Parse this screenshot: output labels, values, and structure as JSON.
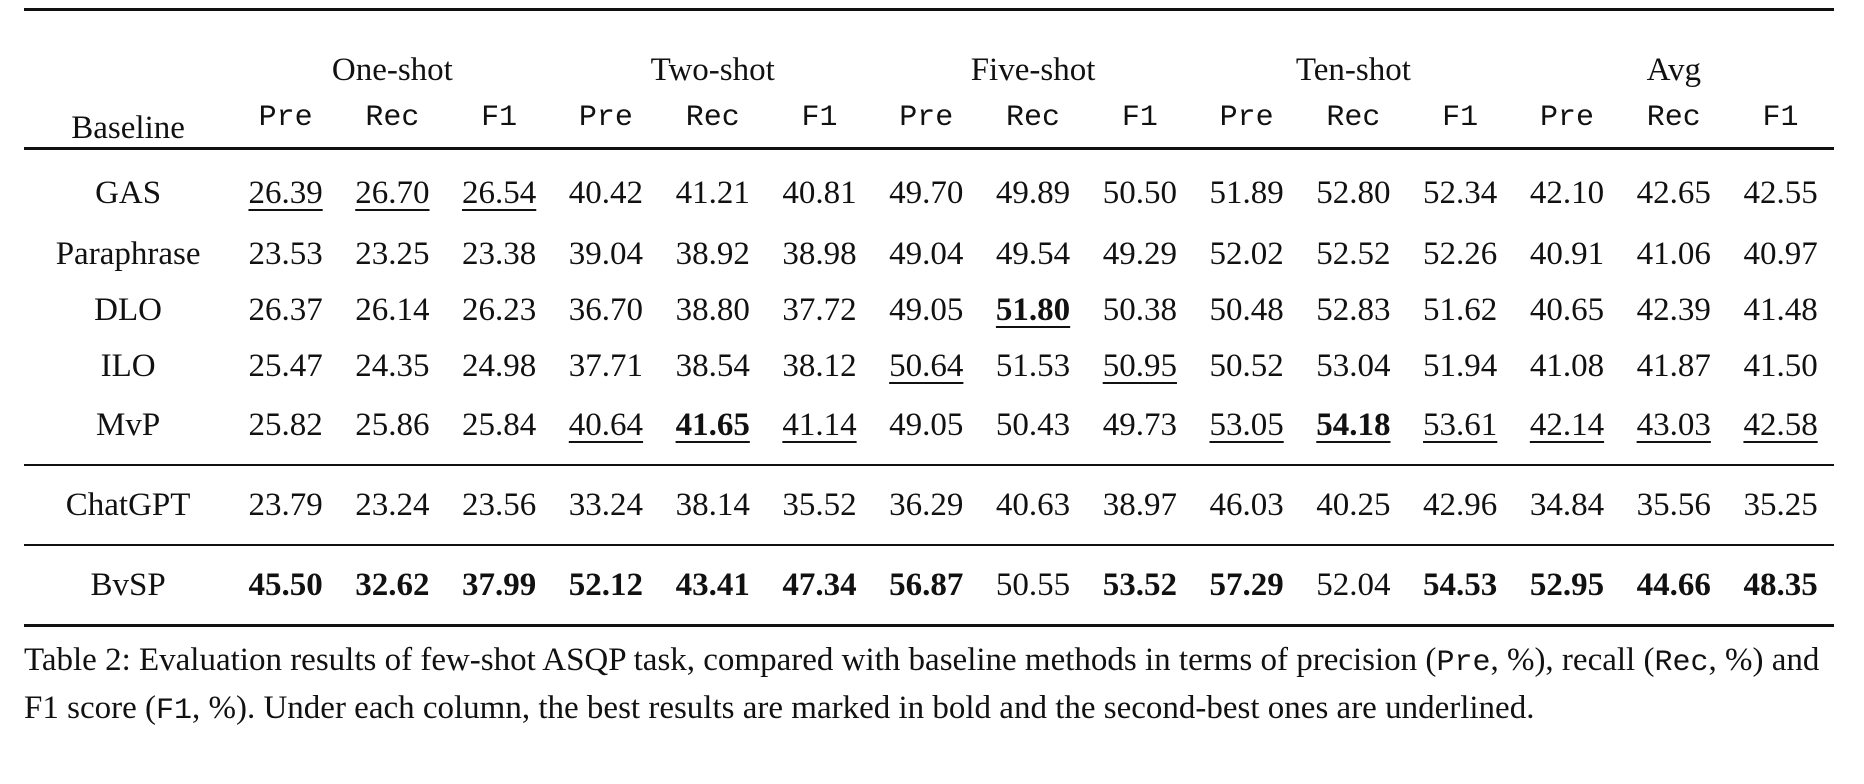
{
  "table": {
    "baseline_header": "Baseline",
    "groups": [
      "One-shot",
      "Two-shot",
      "Five-shot",
      "Ten-shot",
      "Avg"
    ],
    "metrics": [
      "Pre",
      "Rec",
      "F1"
    ],
    "rows": [
      {
        "name": "GAS",
        "cells": [
          {
            "v": "26.39",
            "s": "u"
          },
          {
            "v": "26.70",
            "s": "u"
          },
          {
            "v": "26.54",
            "s": "u"
          },
          {
            "v": "40.42",
            "s": ""
          },
          {
            "v": "41.21",
            "s": ""
          },
          {
            "v": "40.81",
            "s": ""
          },
          {
            "v": "49.70",
            "s": ""
          },
          {
            "v": "49.89",
            "s": ""
          },
          {
            "v": "50.50",
            "s": ""
          },
          {
            "v": "51.89",
            "s": ""
          },
          {
            "v": "52.80",
            "s": ""
          },
          {
            "v": "52.34",
            "s": ""
          },
          {
            "v": "42.10",
            "s": ""
          },
          {
            "v": "42.65",
            "s": ""
          },
          {
            "v": "42.55",
            "s": ""
          }
        ]
      },
      {
        "name": "Paraphrase",
        "cells": [
          {
            "v": "23.53",
            "s": ""
          },
          {
            "v": "23.25",
            "s": ""
          },
          {
            "v": "23.38",
            "s": ""
          },
          {
            "v": "39.04",
            "s": ""
          },
          {
            "v": "38.92",
            "s": ""
          },
          {
            "v": "38.98",
            "s": ""
          },
          {
            "v": "49.04",
            "s": ""
          },
          {
            "v": "49.54",
            "s": ""
          },
          {
            "v": "49.29",
            "s": ""
          },
          {
            "v": "52.02",
            "s": ""
          },
          {
            "v": "52.52",
            "s": ""
          },
          {
            "v": "52.26",
            "s": ""
          },
          {
            "v": "40.91",
            "s": ""
          },
          {
            "v": "41.06",
            "s": ""
          },
          {
            "v": "40.97",
            "s": ""
          }
        ]
      },
      {
        "name": "DLO",
        "cells": [
          {
            "v": "26.37",
            "s": ""
          },
          {
            "v": "26.14",
            "s": ""
          },
          {
            "v": "26.23",
            "s": ""
          },
          {
            "v": "36.70",
            "s": ""
          },
          {
            "v": "38.80",
            "s": ""
          },
          {
            "v": "37.72",
            "s": ""
          },
          {
            "v": "49.05",
            "s": ""
          },
          {
            "v": "51.80",
            "s": "bu"
          },
          {
            "v": "50.38",
            "s": ""
          },
          {
            "v": "50.48",
            "s": ""
          },
          {
            "v": "52.83",
            "s": ""
          },
          {
            "v": "51.62",
            "s": ""
          },
          {
            "v": "40.65",
            "s": ""
          },
          {
            "v": "42.39",
            "s": ""
          },
          {
            "v": "41.48",
            "s": ""
          }
        ]
      },
      {
        "name": "ILO",
        "cells": [
          {
            "v": "25.47",
            "s": ""
          },
          {
            "v": "24.35",
            "s": ""
          },
          {
            "v": "24.98",
            "s": ""
          },
          {
            "v": "37.71",
            "s": ""
          },
          {
            "v": "38.54",
            "s": ""
          },
          {
            "v": "38.12",
            "s": ""
          },
          {
            "v": "50.64",
            "s": "u"
          },
          {
            "v": "51.53",
            "s": ""
          },
          {
            "v": "50.95",
            "s": "u"
          },
          {
            "v": "50.52",
            "s": ""
          },
          {
            "v": "53.04",
            "s": ""
          },
          {
            "v": "51.94",
            "s": ""
          },
          {
            "v": "41.08",
            "s": ""
          },
          {
            "v": "41.87",
            "s": ""
          },
          {
            "v": "41.50",
            "s": ""
          }
        ]
      },
      {
        "name": "MvP",
        "cells": [
          {
            "v": "25.82",
            "s": ""
          },
          {
            "v": "25.86",
            "s": ""
          },
          {
            "v": "25.84",
            "s": ""
          },
          {
            "v": "40.64",
            "s": "u"
          },
          {
            "v": "41.65",
            "s": "bu"
          },
          {
            "v": "41.14",
            "s": "u"
          },
          {
            "v": "49.05",
            "s": ""
          },
          {
            "v": "50.43",
            "s": ""
          },
          {
            "v": "49.73",
            "s": ""
          },
          {
            "v": "53.05",
            "s": "u"
          },
          {
            "v": "54.18",
            "s": "bu"
          },
          {
            "v": "53.61",
            "s": "u"
          },
          {
            "v": "42.14",
            "s": "u"
          },
          {
            "v": "43.03",
            "s": "u"
          },
          {
            "v": "42.58",
            "s": "u"
          }
        ]
      },
      {
        "name": "ChatGPT",
        "cells": [
          {
            "v": "23.79",
            "s": ""
          },
          {
            "v": "23.24",
            "s": ""
          },
          {
            "v": "23.56",
            "s": ""
          },
          {
            "v": "33.24",
            "s": ""
          },
          {
            "v": "38.14",
            "s": ""
          },
          {
            "v": "35.52",
            "s": ""
          },
          {
            "v": "36.29",
            "s": ""
          },
          {
            "v": "40.63",
            "s": ""
          },
          {
            "v": "38.97",
            "s": ""
          },
          {
            "v": "46.03",
            "s": ""
          },
          {
            "v": "40.25",
            "s": ""
          },
          {
            "v": "42.96",
            "s": ""
          },
          {
            "v": "34.84",
            "s": ""
          },
          {
            "v": "35.56",
            "s": ""
          },
          {
            "v": "35.25",
            "s": ""
          }
        ]
      },
      {
        "name": "BvSP",
        "cells": [
          {
            "v": "45.50",
            "s": "b"
          },
          {
            "v": "32.62",
            "s": "b"
          },
          {
            "v": "37.99",
            "s": "b"
          },
          {
            "v": "52.12",
            "s": "b"
          },
          {
            "v": "43.41",
            "s": "b"
          },
          {
            "v": "47.34",
            "s": "b"
          },
          {
            "v": "56.87",
            "s": "b"
          },
          {
            "v": "50.55",
            "s": ""
          },
          {
            "v": "53.52",
            "s": "b"
          },
          {
            "v": "57.29",
            "s": "b"
          },
          {
            "v": "52.04",
            "s": ""
          },
          {
            "v": "54.53",
            "s": "b"
          },
          {
            "v": "52.95",
            "s": "b"
          },
          {
            "v": "44.66",
            "s": "b"
          },
          {
            "v": "48.35",
            "s": "b"
          }
        ]
      }
    ]
  },
  "caption": {
    "p1": "Table 2: Evaluation results of few-shot ASQP task, compared with baseline methods in terms of precision (",
    "m1": "Pre",
    "p2": ", %), recall (",
    "m2": "Rec",
    "p3": ", %) and F1 score (",
    "m3": "F1",
    "p4": ", %). Under each column, the best results are marked in bold and the second-best ones are underlined."
  }
}
